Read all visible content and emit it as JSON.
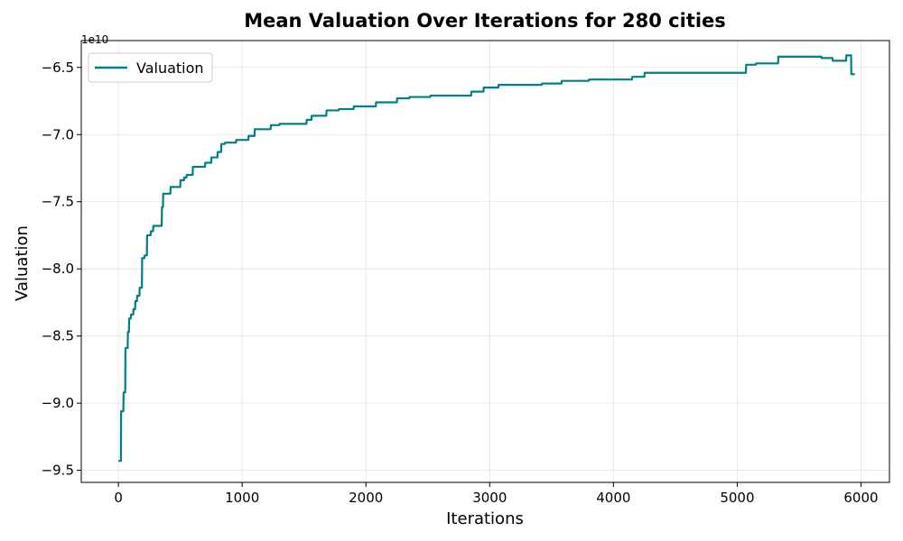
{
  "chart_data": {
    "type": "line",
    "title": "Mean Valuation Over Iterations for 280 cities",
    "xlabel": "Iterations",
    "ylabel": "Valuation",
    "y_offset_label": "1e10",
    "y_scale_factor": 10000000000,
    "xlim": [
      -300,
      6230
    ],
    "ylim": [
      -95.9,
      -63.0
    ],
    "x_ticks": [
      0,
      1000,
      2000,
      3000,
      4000,
      5000,
      6000
    ],
    "x_tick_labels": [
      "0",
      "1000",
      "2000",
      "3000",
      "4000",
      "5000",
      "6000"
    ],
    "y_ticks": [
      -95.0,
      -90.0,
      -85.0,
      -80.0,
      -75.0,
      -70.0,
      -65.0
    ],
    "y_tick_labels": [
      "−9.5",
      "−9.0",
      "−8.5",
      "−8.0",
      "−7.5",
      "−7.0",
      "−6.5"
    ],
    "grid": true,
    "legend_position": "top-left",
    "series": [
      {
        "name": "Valuation",
        "color": "#008080",
        "points": [
          [
            0,
            -94.3
          ],
          [
            20,
            -94.3
          ],
          [
            22,
            -90.6
          ],
          [
            40,
            -90.6
          ],
          [
            42,
            -89.2
          ],
          [
            55,
            -89.2
          ],
          [
            57,
            -85.9
          ],
          [
            75,
            -85.9
          ],
          [
            77,
            -84.7
          ],
          [
            85,
            -84.7
          ],
          [
            87,
            -83.7
          ],
          [
            100,
            -83.7
          ],
          [
            102,
            -83.4
          ],
          [
            120,
            -83.4
          ],
          [
            122,
            -83.0
          ],
          [
            135,
            -83.0
          ],
          [
            137,
            -82.4
          ],
          [
            150,
            -82.4
          ],
          [
            152,
            -82.0
          ],
          [
            170,
            -82.0
          ],
          [
            172,
            -81.4
          ],
          [
            190,
            -81.4
          ],
          [
            192,
            -79.2
          ],
          [
            210,
            -79.2
          ],
          [
            212,
            -79.0
          ],
          [
            230,
            -79.0
          ],
          [
            232,
            -77.5
          ],
          [
            260,
            -77.5
          ],
          [
            262,
            -77.2
          ],
          [
            280,
            -77.2
          ],
          [
            282,
            -76.8
          ],
          [
            350,
            -76.8
          ],
          [
            352,
            -75.4
          ],
          [
            360,
            -75.4
          ],
          [
            362,
            -74.4
          ],
          [
            420,
            -74.4
          ],
          [
            422,
            -73.9
          ],
          [
            500,
            -73.9
          ],
          [
            502,
            -73.4
          ],
          [
            530,
            -73.4
          ],
          [
            532,
            -73.2
          ],
          [
            550,
            -73.2
          ],
          [
            552,
            -73.0
          ],
          [
            600,
            -73.0
          ],
          [
            602,
            -72.4
          ],
          [
            700,
            -72.4
          ],
          [
            702,
            -72.1
          ],
          [
            750,
            -72.1
          ],
          [
            752,
            -71.7
          ],
          [
            800,
            -71.7
          ],
          [
            802,
            -71.3
          ],
          [
            830,
            -71.3
          ],
          [
            832,
            -70.7
          ],
          [
            860,
            -70.7
          ],
          [
            862,
            -70.6
          ],
          [
            950,
            -70.6
          ],
          [
            952,
            -70.4
          ],
          [
            1050,
            -70.4
          ],
          [
            1052,
            -70.1
          ],
          [
            1100,
            -70.1
          ],
          [
            1102,
            -69.6
          ],
          [
            1230,
            -69.6
          ],
          [
            1232,
            -69.3
          ],
          [
            1300,
            -69.3
          ],
          [
            1302,
            -69.2
          ],
          [
            1520,
            -69.2
          ],
          [
            1522,
            -68.9
          ],
          [
            1560,
            -68.9
          ],
          [
            1562,
            -68.6
          ],
          [
            1680,
            -68.6
          ],
          [
            1682,
            -68.2
          ],
          [
            1780,
            -68.2
          ],
          [
            1782,
            -68.1
          ],
          [
            1900,
            -68.1
          ],
          [
            1902,
            -67.9
          ],
          [
            2080,
            -67.9
          ],
          [
            2082,
            -67.6
          ],
          [
            2250,
            -67.6
          ],
          [
            2252,
            -67.3
          ],
          [
            2350,
            -67.3
          ],
          [
            2352,
            -67.2
          ],
          [
            2520,
            -67.2
          ],
          [
            2522,
            -67.1
          ],
          [
            2850,
            -67.1
          ],
          [
            2852,
            -66.8
          ],
          [
            2950,
            -66.8
          ],
          [
            2952,
            -66.5
          ],
          [
            3070,
            -66.5
          ],
          [
            3072,
            -66.3
          ],
          [
            3420,
            -66.3
          ],
          [
            3422,
            -66.2
          ],
          [
            3580,
            -66.2
          ],
          [
            3582,
            -66.0
          ],
          [
            3800,
            -66.0
          ],
          [
            3802,
            -65.9
          ],
          [
            4150,
            -65.9
          ],
          [
            4152,
            -65.7
          ],
          [
            4250,
            -65.7
          ],
          [
            4252,
            -65.4
          ],
          [
            5070,
            -65.4
          ],
          [
            5072,
            -64.8
          ],
          [
            5150,
            -64.8
          ],
          [
            5152,
            -64.7
          ],
          [
            5330,
            -64.7
          ],
          [
            5332,
            -64.2
          ],
          [
            5680,
            -64.2
          ],
          [
            5682,
            -64.3
          ],
          [
            5770,
            -64.3
          ],
          [
            5772,
            -64.5
          ],
          [
            5880,
            -64.5
          ],
          [
            5882,
            -64.1
          ],
          [
            5920,
            -64.1
          ],
          [
            5922,
            -65.5
          ],
          [
            5950,
            -65.5
          ]
        ]
      }
    ]
  }
}
